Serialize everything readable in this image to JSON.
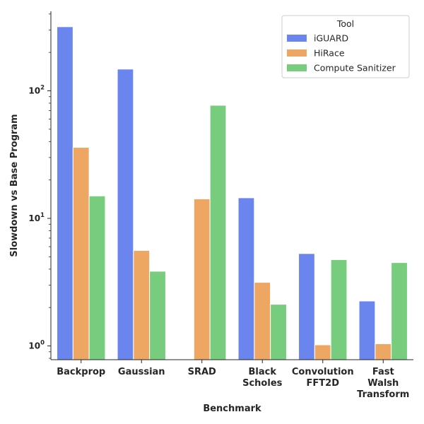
{
  "chart_data": {
    "type": "bar",
    "title": "",
    "xlabel": "Benchmark",
    "ylabel": "Slowdown vs Base Program",
    "yscale": "log",
    "ylim": [
      0.78,
      420
    ],
    "yticks": [
      {
        "value": 1,
        "base": "10",
        "exp": "0"
      },
      {
        "value": 10,
        "base": "10",
        "exp": "1"
      },
      {
        "value": 100,
        "base": "10",
        "exp": "2"
      }
    ],
    "categories": [
      [
        "Backprop"
      ],
      [
        "Gaussian"
      ],
      [
        "SRAD"
      ],
      [
        "Black",
        "Scholes"
      ],
      [
        "Convolution",
        "FFT2D"
      ],
      [
        "Fast",
        "Walsh",
        "Transform"
      ]
    ],
    "series": [
      {
        "name": "iGUARD",
        "color": "#6a86ee",
        "values": [
          318,
          148,
          null,
          14.5,
          5.3,
          2.25
        ]
      },
      {
        "name": "HiRace",
        "color": "#eda762",
        "values": [
          36,
          5.6,
          14.2,
          3.15,
          1.02,
          1.04
        ]
      },
      {
        "name": "Compute Sanitizer",
        "color": "#77cc7d",
        "values": [
          15,
          3.85,
          77,
          2.12,
          4.75,
          4.5
        ]
      }
    ],
    "legend": {
      "title": "Tool",
      "placement": "top-right"
    },
    "grid": false
  }
}
